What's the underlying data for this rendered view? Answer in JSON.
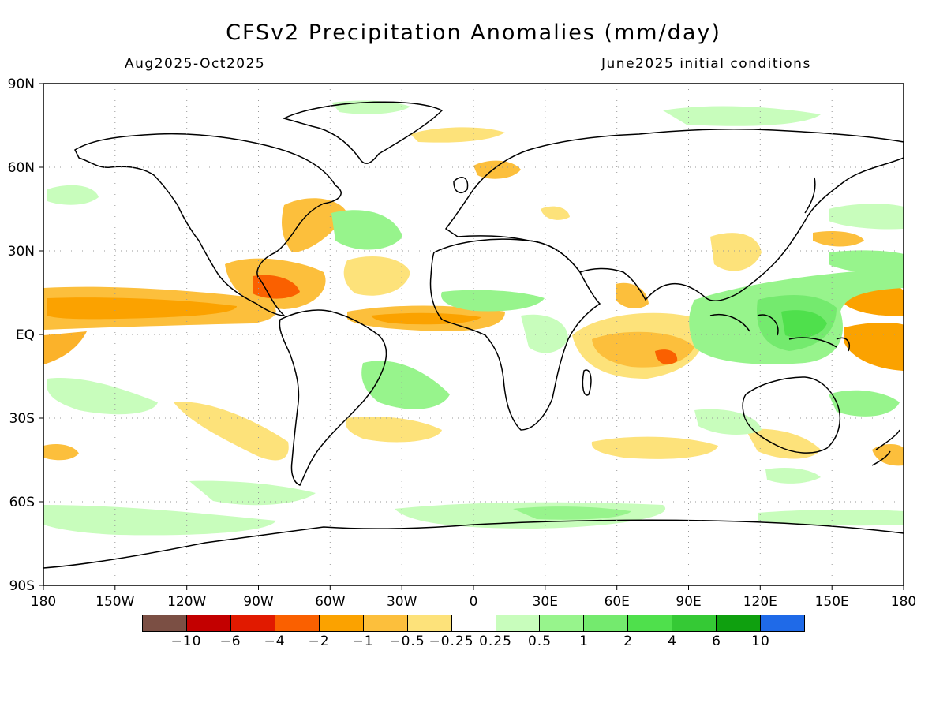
{
  "header": {
    "title": "CFSv2 Precipitation Anomalies (mm/day)",
    "period": "Aug2025-Oct2025",
    "initial_conditions": "June2025 initial conditions"
  },
  "axes": {
    "lon_labels": [
      "180",
      "150W",
      "120W",
      "90W",
      "60W",
      "30W",
      "0",
      "30E",
      "60E",
      "90E",
      "120E",
      "150E",
      "180"
    ],
    "lat_labels": [
      "90N",
      "60N",
      "30N",
      "EQ",
      "30S",
      "60S",
      "90S"
    ]
  },
  "legend": {
    "colors": [
      "#7b4f44",
      "#c30000",
      "#e11a00",
      "#fa6000",
      "#fba200",
      "#fcbf3c",
      "#fde27a",
      "#ffffff",
      "#c8fdbc",
      "#97f48c",
      "#74ea6e",
      "#4fe04c",
      "#35c935",
      "#0fa00f",
      "#1f6ae8"
    ],
    "labels": [
      "−10",
      "−6",
      "−4",
      "−2",
      "−1",
      "−0.5",
      "−0.25",
      "0.25",
      "0.5",
      "1",
      "2",
      "4",
      "6",
      "10"
    ]
  }
}
